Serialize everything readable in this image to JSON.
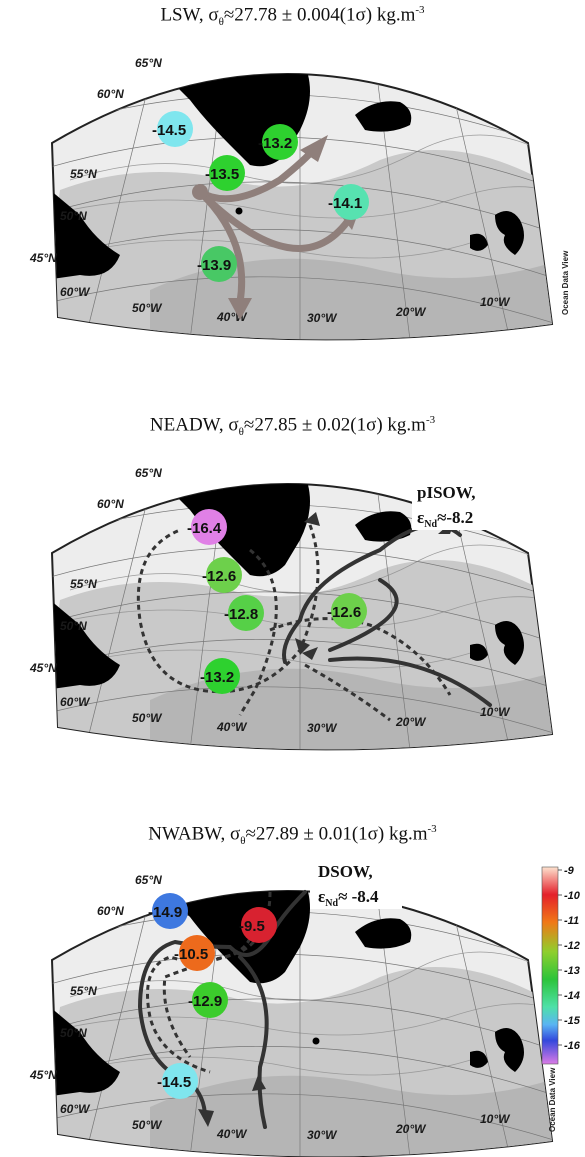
{
  "watermark": "Ocean Data View",
  "lat_labels": [
    "65°N",
    "60°N",
    "55°N",
    "50°N",
    "45°N"
  ],
  "lon_labels": [
    "60°W",
    "50°W",
    "40°W",
    "30°W",
    "20°W",
    "10°W"
  ],
  "panels": [
    {
      "id": "lsw",
      "water_mass": "LSW",
      "sigma_value": "27.78 ± 0.004(1σ) kg.m",
      "unit_exponent": "-3",
      "stations": [
        "-14.5",
        "-13.2",
        "-13.5",
        "-14.1",
        "-13.9"
      ],
      "station_values": [
        -14.5,
        -13.2,
        -13.5,
        -14.1,
        -13.9
      ]
    },
    {
      "id": "neadw",
      "water_mass": "NEADW",
      "sigma_value": "27.85 ± 0.02(1σ) kg.m",
      "unit_exponent": "-3",
      "stations": [
        "-16.4",
        "-12.6",
        "-12.8",
        "-12.6",
        "-13.2"
      ],
      "station_values": [
        -16.4,
        -12.6,
        -12.8,
        -12.6,
        -13.2
      ],
      "source": {
        "name": "pISOW,",
        "epsilon_symbol": "ε",
        "epsilon_sub": "Nd",
        "value": "≈-8.2"
      }
    },
    {
      "id": "nwabw",
      "water_mass": "NWABW",
      "sigma_value": "27.89 ± 0.01(1σ) kg.m",
      "unit_exponent": "-3",
      "stations": [
        "-14.9",
        "-9.5",
        "-10.5",
        "-12.9",
        "-14.5"
      ],
      "station_values": [
        -14.9,
        -9.5,
        -10.5,
        -12.9,
        -14.5
      ],
      "source": {
        "name": "DSOW,",
        "epsilon_symbol": "ε",
        "epsilon_sub": "Nd",
        "value": "≈ -8.4"
      }
    }
  ],
  "colorbar": {
    "ticks": [
      "-9",
      "-10",
      "-11",
      "-12",
      "-13",
      "-14",
      "-15",
      "-16"
    ],
    "tick_values": [
      -9,
      -10,
      -11,
      -12,
      -13,
      -14,
      -15,
      -16
    ],
    "colors": [
      "#fde2cf",
      "#e4202b",
      "#f07817",
      "#8fcf2e",
      "#2cc43a",
      "#4ee0a8",
      "#5ab4f3",
      "#3348dc",
      "#db7be6"
    ]
  }
}
